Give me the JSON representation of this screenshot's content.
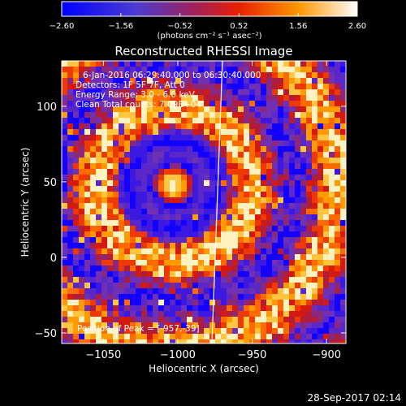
{
  "chart_data": {
    "type": "heatmap",
    "title": "Reconstructed RHESSI Image",
    "xlabel": "Heliocentric X (arcsec)",
    "ylabel": "Heliocentric Y (arcsec)",
    "xlim": [
      -1078,
      -887
    ],
    "ylim": [
      -57,
      130
    ],
    "x_ticks": [
      -1050,
      -1000,
      -950,
      -900
    ],
    "x_tick_labels": [
      "−1050",
      "−1000",
      "−950",
      "−900"
    ],
    "y_ticks": [
      -50,
      0,
      50,
      100
    ],
    "y_tick_labels": [
      "−50",
      "0",
      "50",
      "100"
    ],
    "colorbar": {
      "min": -2.6,
      "max": 2.6,
      "ticks": [
        -2.6,
        -1.56,
        -0.52,
        0.52,
        1.56,
        2.6
      ],
      "tick_labels": [
        "−2.60",
        "−1.56",
        "−0.52",
        "0.52",
        "1.56",
        "2.60"
      ],
      "units": "(photons cm⁻² s⁻¹ asec⁻²)"
    },
    "annotations": [
      "6-Jan-2016 06:29:40.000 to 06:30:40.000",
      "Detectors: 1F 5F 7F, Att 0",
      "Energy Range: 3.0 - 6.0 keV",
      "Clean    Total counts: 7.09E+04",
      "Position of Peak = [-957,-39]"
    ],
    "source_center": [
      -1003,
      48
    ],
    "grid": false
  },
  "footer": {
    "timestamp": "28-Sep-2017 02:14"
  },
  "colors": {
    "background": "#000000",
    "text": "#ffffff",
    "colorbar_stops": [
      "#0000ff",
      "#6a3cc8",
      "#c0203c",
      "#ff4000",
      "#ffa000",
      "#ffffff"
    ]
  }
}
